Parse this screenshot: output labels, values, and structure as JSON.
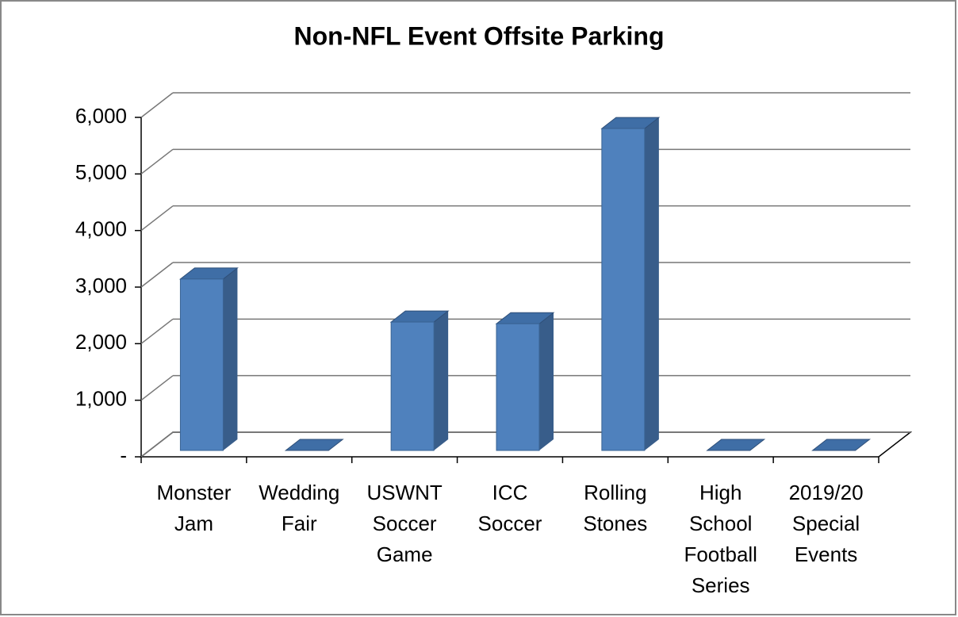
{
  "chart_data": {
    "type": "bar3d",
    "title": "Non-NFL Event Offsite Parking",
    "categories": [
      "Monster Jam",
      "Wedding Fair",
      "USWNT Soccer Game",
      "ICC Soccer",
      "Rolling Stones",
      "High School Football Series",
      "2019/20 Special Events"
    ],
    "values": [
      3030,
      0,
      2270,
      2240,
      5690,
      0,
      0
    ],
    "color": "#4f81bd",
    "ylim": [
      0,
      6000
    ],
    "yticks": [
      {
        "value": 0,
        "label": "-"
      },
      {
        "value": 1000,
        "label": "1,000"
      },
      {
        "value": 2000,
        "label": "2,000"
      },
      {
        "value": 3000,
        "label": "3,000"
      },
      {
        "value": 4000,
        "label": "4,000"
      },
      {
        "value": 5000,
        "label": "5,000"
      },
      {
        "value": 6000,
        "label": "6,000"
      }
    ],
    "grid": true
  }
}
